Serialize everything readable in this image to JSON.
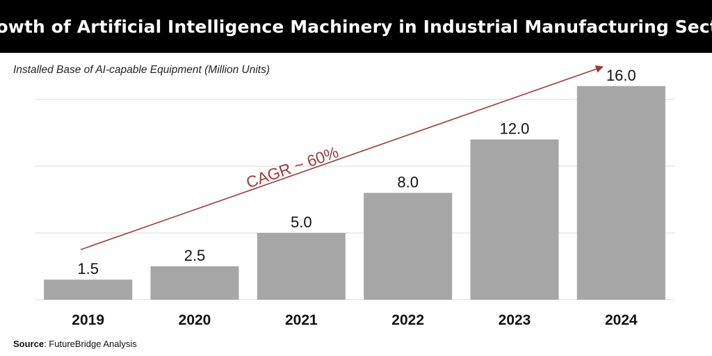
{
  "header": {
    "title": "Growth of Artificial Intelligence Machinery in Industrial Manufacturing Sector"
  },
  "chart_data": {
    "type": "bar",
    "title": "Growth of Artificial Intelligence Machinery in Industrial Manufacturing Sector",
    "subtitle": "Installed Base of AI-capable Equipment (Million Units)",
    "ylabel": "",
    "xlabel": "",
    "categories": [
      "2019",
      "2020",
      "2021",
      "2022",
      "2023",
      "2024"
    ],
    "values": [
      1.5,
      2.5,
      5.0,
      8.0,
      12.0,
      16.0
    ],
    "value_labels": [
      "1.5",
      "2.5",
      "5.0",
      "8.0",
      "12.0",
      "16.0"
    ],
    "ylim": [
      0,
      16
    ],
    "grid": true,
    "bar_color": "#a6a6a6",
    "annotation": {
      "text": "CAGR ~ 60%",
      "color": "#9e3a38"
    }
  },
  "footer": {
    "source_label": "Source",
    "source_text": ": FutureBridge Analysis"
  }
}
